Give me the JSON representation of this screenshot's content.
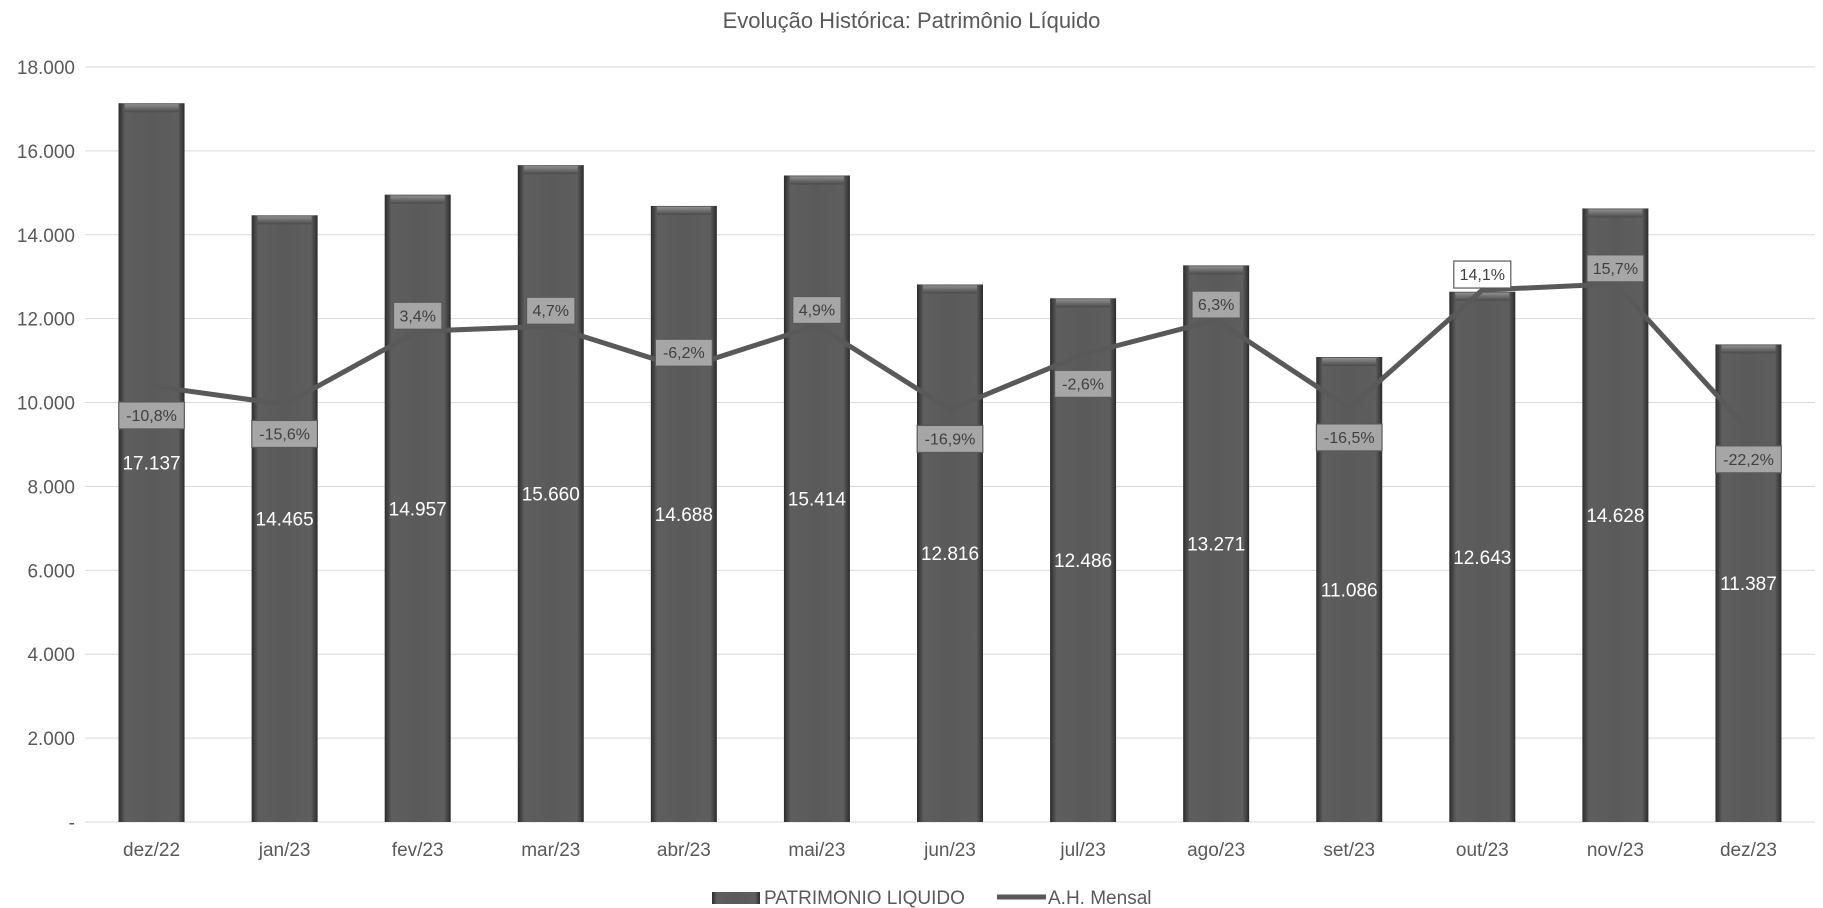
{
  "chart_data": {
    "type": "bar",
    "title": "Evolução Histórica: Patrimônio Líquido",
    "categories": [
      "dez/22",
      "jan/23",
      "fev/23",
      "mar/23",
      "abr/23",
      "mai/23",
      "jun/23",
      "jul/23",
      "ago/23",
      "set/23",
      "out/23",
      "nov/23",
      "dez/23"
    ],
    "series": [
      {
        "name": "PATRIMONIO LIQUIDO",
        "type": "bar",
        "color": "#595959",
        "values": [
          17137,
          14465,
          14957,
          15660,
          14688,
          15414,
          12816,
          12486,
          13271,
          11086,
          12643,
          14628,
          11387
        ],
        "labels": [
          "17.137",
          "14.465",
          "14.957",
          "15.660",
          "14.688",
          "15.414",
          "12.816",
          "12.486",
          "13.271",
          "11.086",
          "12.643",
          "14.628",
          "11.387"
        ]
      },
      {
        "name": "A.H. Mensal",
        "type": "line",
        "axis": "secondary (hidden)",
        "color": "#595959",
        "values": [
          -10.8,
          -15.6,
          3.4,
          4.7,
          -6.2,
          4.9,
          -16.9,
          -2.6,
          6.3,
          -16.5,
          14.1,
          15.7,
          -22.2
        ],
        "labels": [
          "-10,8%",
          "-15,6%",
          "3,4%",
          "4,7%",
          "-6,2%",
          "4,9%",
          "-16,9%",
          "-2,6%",
          "6,3%",
          "-16,5%",
          "14,1%",
          "15,7%",
          "-22,2%"
        ]
      }
    ],
    "y_ticks": [
      "-",
      "2.000",
      "4.000",
      "6.000",
      "8.000",
      "10.000",
      "12.000",
      "14.000",
      "16.000",
      "18.000"
    ],
    "ylim": [
      0,
      18000
    ],
    "grid": true,
    "legend_position": "bottom"
  }
}
